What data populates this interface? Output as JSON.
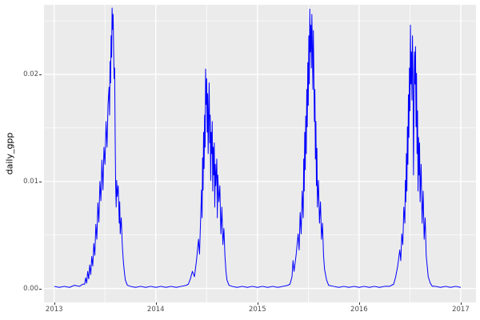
{
  "figure": {
    "background": "#FFFFFF",
    "panel_background": "#EBEBEB",
    "grid_color": "#FFFFFF",
    "axis_text_color": "#4D4D4D",
    "axis_title_color": "#000000",
    "tick_mark_color": "#333333"
  },
  "chart_data": {
    "type": "line",
    "title": "",
    "xlabel": "",
    "ylabel": "daily_gpp",
    "legend": "none",
    "grid": "on",
    "x_ticks": [
      2013,
      2014,
      2015,
      2016,
      2017
    ],
    "x_tick_labels": [
      "2013",
      "2014",
      "2015",
      "2016",
      "2017"
    ],
    "y_ticks": [
      0,
      0.01,
      0.02
    ],
    "y_tick_labels": [
      "0.00",
      "0.01",
      "0.02"
    ],
    "x_minor": [
      2013.5,
      2014.5,
      2015.5,
      2016.5
    ],
    "y_minor": [
      0.005,
      0.015,
      0.025
    ],
    "xlim": [
      2012.9,
      2017.15
    ],
    "ylim": [
      -0.0013,
      0.0265
    ],
    "series": [
      {
        "name": "daily_gpp",
        "color": "#0000FF",
        "points": [
          [
            2013.0,
            0.0002
          ],
          [
            2013.05,
            0.0001
          ],
          [
            2013.1,
            0.0002
          ],
          [
            2013.15,
            0.0001
          ],
          [
            2013.2,
            0.0003
          ],
          [
            2013.25,
            0.0002
          ],
          [
            2013.28,
            0.0004
          ],
          [
            2013.3,
            0.0004
          ],
          [
            2013.31,
            0.001
          ],
          [
            2013.32,
            0.0005
          ],
          [
            2013.33,
            0.0016
          ],
          [
            2013.34,
            0.0009
          ],
          [
            2013.35,
            0.0022
          ],
          [
            2013.36,
            0.0013
          ],
          [
            2013.37,
            0.003
          ],
          [
            2013.38,
            0.0021
          ],
          [
            2013.39,
            0.0042
          ],
          [
            2013.4,
            0.0031
          ],
          [
            2013.41,
            0.006
          ],
          [
            2013.42,
            0.0046
          ],
          [
            2013.43,
            0.008
          ],
          [
            2013.44,
            0.0062
          ],
          [
            2013.45,
            0.01
          ],
          [
            2013.46,
            0.0082
          ],
          [
            2013.47,
            0.012
          ],
          [
            2013.48,
            0.0092
          ],
          [
            2013.49,
            0.0132
          ],
          [
            2013.5,
            0.0116
          ],
          [
            2013.51,
            0.0156
          ],
          [
            2013.52,
            0.0132
          ],
          [
            2013.53,
            0.0172
          ],
          [
            2013.54,
            0.0188
          ],
          [
            2013.545,
            0.0162
          ],
          [
            2013.55,
            0.0212
          ],
          [
            2013.555,
            0.0192
          ],
          [
            2013.56,
            0.0236
          ],
          [
            2013.565,
            0.0216
          ],
          [
            2013.57,
            0.0262
          ],
          [
            2013.575,
            0.0242
          ],
          [
            2013.58,
            0.0256
          ],
          [
            2013.585,
            0.0222
          ],
          [
            2013.59,
            0.0196
          ],
          [
            2013.595,
            0.0206
          ],
          [
            2013.6,
            0.0142
          ],
          [
            2013.605,
            0.0096
          ],
          [
            2013.61,
            0.0076
          ],
          [
            2013.615,
            0.0101
          ],
          [
            2013.62,
            0.0086
          ],
          [
            2013.63,
            0.0096
          ],
          [
            2013.64,
            0.0061
          ],
          [
            2013.645,
            0.0081
          ],
          [
            2013.65,
            0.0051
          ],
          [
            2013.66,
            0.0066
          ],
          [
            2013.67,
            0.0041
          ],
          [
            2013.68,
            0.0026
          ],
          [
            2013.69,
            0.0016
          ],
          [
            2013.7,
            0.0008
          ],
          [
            2013.72,
            0.0003
          ],
          [
            2013.75,
            0.0002
          ],
          [
            2013.8,
            0.0001
          ],
          [
            2013.85,
            0.0002
          ],
          [
            2013.9,
            0.0001
          ],
          [
            2013.95,
            0.0002
          ],
          [
            2014.0,
            0.0001
          ],
          [
            2014.05,
            0.0002
          ],
          [
            2014.1,
            0.0001
          ],
          [
            2014.15,
            0.0002
          ],
          [
            2014.2,
            0.0001
          ],
          [
            2014.25,
            0.0002
          ],
          [
            2014.3,
            0.0003
          ],
          [
            2014.32,
            0.0004
          ],
          [
            2014.34,
            0.0009
          ],
          [
            2014.36,
            0.0016
          ],
          [
            2014.38,
            0.0011
          ],
          [
            2014.4,
            0.0026
          ],
          [
            2014.42,
            0.0046
          ],
          [
            2014.43,
            0.0032
          ],
          [
            2014.44,
            0.0062
          ],
          [
            2014.45,
            0.0092
          ],
          [
            2014.455,
            0.0066
          ],
          [
            2014.46,
            0.0122
          ],
          [
            2014.465,
            0.0092
          ],
          [
            2014.47,
            0.0146
          ],
          [
            2014.475,
            0.0112
          ],
          [
            2014.48,
            0.0162
          ],
          [
            2014.485,
            0.0132
          ],
          [
            2014.49,
            0.0205
          ],
          [
            2014.495,
            0.0172
          ],
          [
            2014.5,
            0.0196
          ],
          [
            2014.505,
            0.0146
          ],
          [
            2014.51,
            0.0182
          ],
          [
            2014.515,
            0.0126
          ],
          [
            2014.52,
            0.0166
          ],
          [
            2014.525,
            0.0192
          ],
          [
            2014.53,
            0.0136
          ],
          [
            2014.535,
            0.0162
          ],
          [
            2014.54,
            0.0101
          ],
          [
            2014.545,
            0.0146
          ],
          [
            2014.55,
            0.0126
          ],
          [
            2014.555,
            0.0156
          ],
          [
            2014.56,
            0.0091
          ],
          [
            2014.565,
            0.0132
          ],
          [
            2014.57,
            0.0106
          ],
          [
            2014.575,
            0.0136
          ],
          [
            2014.58,
            0.0076
          ],
          [
            2014.585,
            0.0116
          ],
          [
            2014.59,
            0.0096
          ],
          [
            2014.6,
            0.0121
          ],
          [
            2014.605,
            0.0066
          ],
          [
            2014.61,
            0.0106
          ],
          [
            2014.62,
            0.0081
          ],
          [
            2014.63,
            0.0096
          ],
          [
            2014.64,
            0.0051
          ],
          [
            2014.65,
            0.0076
          ],
          [
            2014.66,
            0.0041
          ],
          [
            2014.67,
            0.0056
          ],
          [
            2014.68,
            0.0031
          ],
          [
            2014.69,
            0.0016
          ],
          [
            2014.7,
            0.0008
          ],
          [
            2014.72,
            0.0003
          ],
          [
            2014.75,
            0.0002
          ],
          [
            2014.8,
            0.0001
          ],
          [
            2014.85,
            0.0002
          ],
          [
            2014.9,
            0.0001
          ],
          [
            2014.95,
            0.0002
          ],
          [
            2015.0,
            0.0001
          ],
          [
            2015.05,
            0.0002
          ],
          [
            2015.1,
            0.0001
          ],
          [
            2015.15,
            0.0002
          ],
          [
            2015.2,
            0.0001
          ],
          [
            2015.25,
            0.0002
          ],
          [
            2015.3,
            0.0003
          ],
          [
            2015.32,
            0.0004
          ],
          [
            2015.34,
            0.0011
          ],
          [
            2015.35,
            0.0026
          ],
          [
            2015.36,
            0.0016
          ],
          [
            2015.38,
            0.0031
          ],
          [
            2015.4,
            0.0051
          ],
          [
            2015.41,
            0.0036
          ],
          [
            2015.42,
            0.0071
          ],
          [
            2015.43,
            0.0051
          ],
          [
            2015.44,
            0.0091
          ],
          [
            2015.45,
            0.0066
          ],
          [
            2015.455,
            0.0121
          ],
          [
            2015.46,
            0.0091
          ],
          [
            2015.465,
            0.0146
          ],
          [
            2015.47,
            0.0111
          ],
          [
            2015.475,
            0.0161
          ],
          [
            2015.48,
            0.0126
          ],
          [
            2015.485,
            0.0186
          ],
          [
            2015.49,
            0.0151
          ],
          [
            2015.495,
            0.0211
          ],
          [
            2015.5,
            0.0171
          ],
          [
            2015.505,
            0.0236
          ],
          [
            2015.51,
            0.0191
          ],
          [
            2015.515,
            0.0261
          ],
          [
            2015.52,
            0.0221
          ],
          [
            2015.525,
            0.0246
          ],
          [
            2015.53,
            0.0206
          ],
          [
            2015.535,
            0.0256
          ],
          [
            2015.54,
            0.0226
          ],
          [
            2015.545,
            0.0186
          ],
          [
            2015.55,
            0.0241
          ],
          [
            2015.555,
            0.0201
          ],
          [
            2015.56,
            0.0156
          ],
          [
            2015.565,
            0.0186
          ],
          [
            2015.57,
            0.0121
          ],
          [
            2015.575,
            0.0156
          ],
          [
            2015.58,
            0.0096
          ],
          [
            2015.585,
            0.0131
          ],
          [
            2015.59,
            0.0076
          ],
          [
            2015.6,
            0.0101
          ],
          [
            2015.61,
            0.0061
          ],
          [
            2015.62,
            0.0081
          ],
          [
            2015.63,
            0.0046
          ],
          [
            2015.64,
            0.0061
          ],
          [
            2015.65,
            0.0031
          ],
          [
            2015.66,
            0.0018
          ],
          [
            2015.68,
            0.0008
          ],
          [
            2015.7,
            0.0003
          ],
          [
            2015.75,
            0.0002
          ],
          [
            2015.8,
            0.0001
          ],
          [
            2015.85,
            0.0002
          ],
          [
            2015.9,
            0.0001
          ],
          [
            2015.95,
            0.0002
          ],
          [
            2016.0,
            0.0001
          ],
          [
            2016.05,
            0.0002
          ],
          [
            2016.1,
            0.0001
          ],
          [
            2016.15,
            0.0002
          ],
          [
            2016.2,
            0.0001
          ],
          [
            2016.25,
            0.0002
          ],
          [
            2016.3,
            0.0002
          ],
          [
            2016.34,
            0.0004
          ],
          [
            2016.36,
            0.0011
          ],
          [
            2016.38,
            0.0021
          ],
          [
            2016.4,
            0.0036
          ],
          [
            2016.41,
            0.0026
          ],
          [
            2016.42,
            0.0051
          ],
          [
            2016.43,
            0.0041
          ],
          [
            2016.44,
            0.0076
          ],
          [
            2016.45,
            0.0061
          ],
          [
            2016.455,
            0.0101
          ],
          [
            2016.46,
            0.0081
          ],
          [
            2016.465,
            0.0126
          ],
          [
            2016.47,
            0.0091
          ],
          [
            2016.475,
            0.0151
          ],
          [
            2016.48,
            0.0116
          ],
          [
            2016.485,
            0.0181
          ],
          [
            2016.49,
            0.0141
          ],
          [
            2016.495,
            0.0206
          ],
          [
            2016.5,
            0.0166
          ],
          [
            2016.505,
            0.0246
          ],
          [
            2016.51,
            0.0191
          ],
          [
            2016.515,
            0.0221
          ],
          [
            2016.52,
            0.0176
          ],
          [
            2016.525,
            0.0236
          ],
          [
            2016.53,
            0.0201
          ],
          [
            2016.535,
            0.0106
          ],
          [
            2016.54,
            0.0171
          ],
          [
            2016.545,
            0.0221
          ],
          [
            2016.55,
            0.0191
          ],
          [
            2016.555,
            0.0226
          ],
          [
            2016.56,
            0.0151
          ],
          [
            2016.565,
            0.0201
          ],
          [
            2016.57,
            0.0126
          ],
          [
            2016.575,
            0.0166
          ],
          [
            2016.58,
            0.0091
          ],
          [
            2016.585,
            0.0141
          ],
          [
            2016.59,
            0.0106
          ],
          [
            2016.595,
            0.0136
          ],
          [
            2016.6,
            0.0081
          ],
          [
            2016.61,
            0.0116
          ],
          [
            2016.62,
            0.0061
          ],
          [
            2016.63,
            0.0091
          ],
          [
            2016.64,
            0.0046
          ],
          [
            2016.65,
            0.0066
          ],
          [
            2016.66,
            0.0031
          ],
          [
            2016.67,
            0.0021
          ],
          [
            2016.68,
            0.0011
          ],
          [
            2016.7,
            0.0005
          ],
          [
            2016.72,
            0.0002
          ],
          [
            2016.75,
            0.0002
          ],
          [
            2016.8,
            0.0001
          ],
          [
            2016.85,
            0.0002
          ],
          [
            2016.9,
            0.0001
          ],
          [
            2016.95,
            0.0002
          ],
          [
            2017.0,
            0.0001
          ]
        ]
      }
    ]
  }
}
